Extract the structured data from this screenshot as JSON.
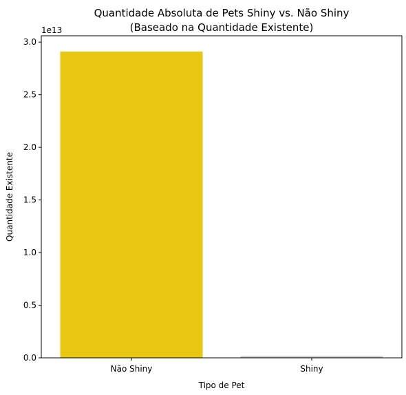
{
  "chart_data": {
    "type": "bar",
    "title": "Quantidade Absoluta de Pets Shiny vs. Não Shiny",
    "subtitle": "(Baseado na Quantidade Existente)",
    "xlabel": "Tipo de Pet",
    "ylabel": "Quantidade Existente",
    "y_offset_label": "1e13",
    "categories": [
      "Não Shiny",
      "Shiny"
    ],
    "values": [
      29100000000000,
      150000000000
    ],
    "colors": [
      "#e8c713",
      "#c0c0c0"
    ],
    "ylim": [
      0,
      30600000000000
    ],
    "yticks": [
      0,
      5000000000000,
      10000000000000,
      15000000000000,
      20000000000000,
      25000000000000,
      30000000000000
    ],
    "ytick_labels": [
      "0.0",
      "0.5",
      "1.0",
      "1.5",
      "2.0",
      "2.5",
      "3.0"
    ],
    "grid": false,
    "legend": "none"
  }
}
